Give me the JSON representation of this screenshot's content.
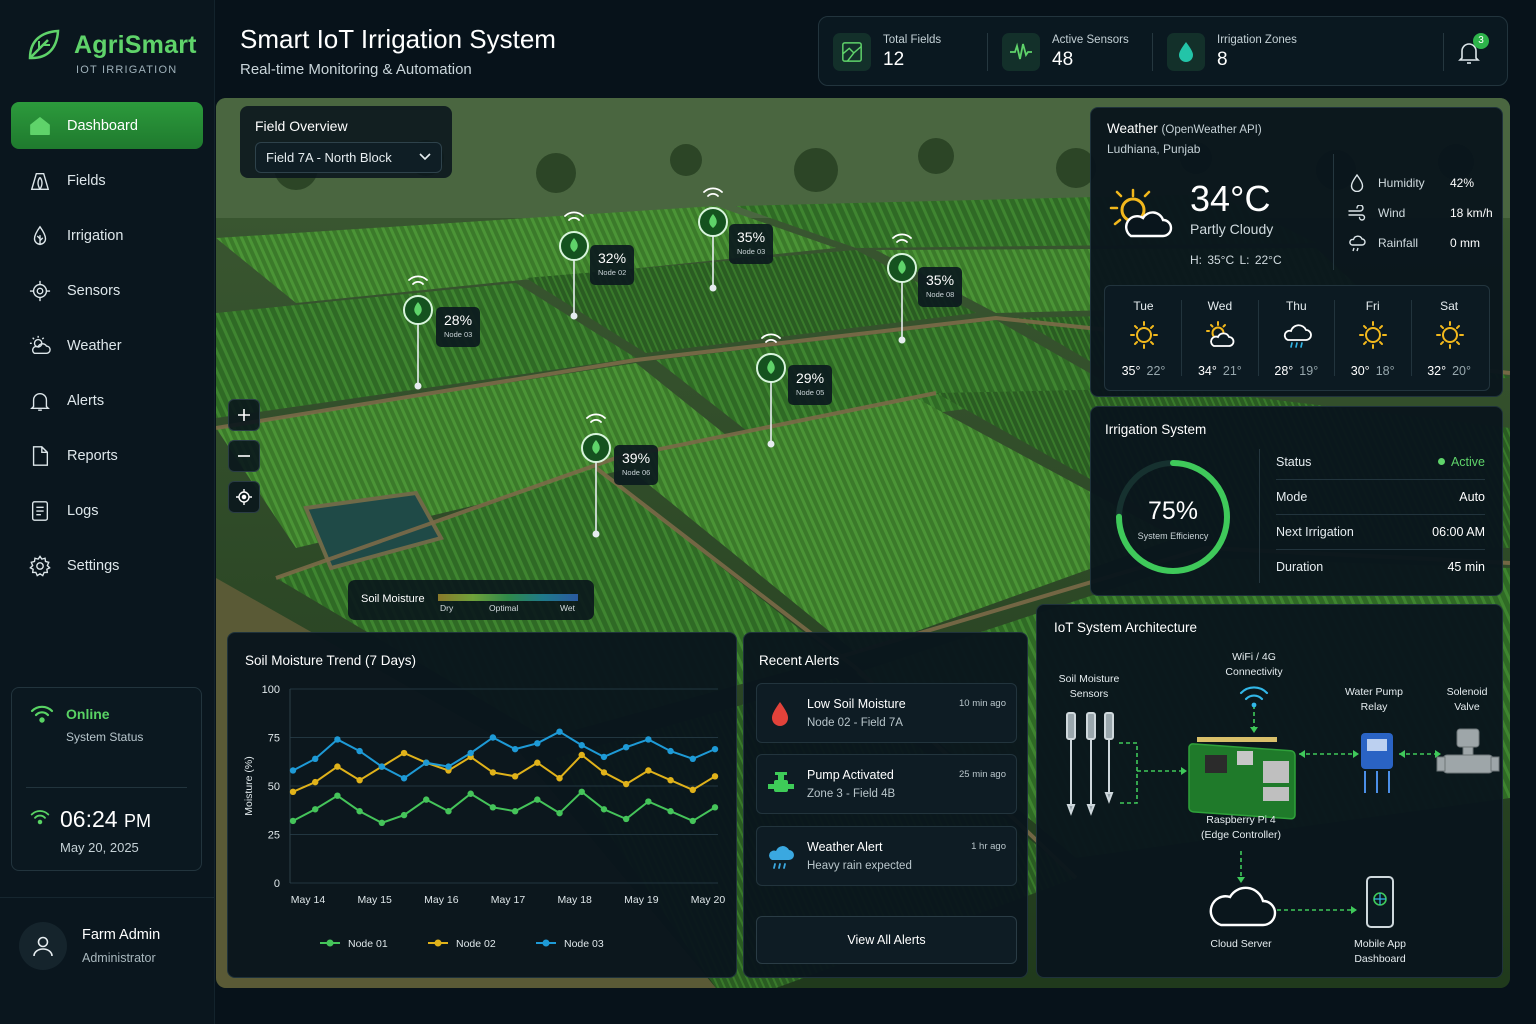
{
  "brand": {
    "name": "AgriSmart",
    "subtitle": "IOT IRRIGATION"
  },
  "nav": [
    {
      "label": "Dashboard",
      "icon": "home-icon",
      "active": true
    },
    {
      "label": "Fields",
      "icon": "field-icon"
    },
    {
      "label": "Irrigation",
      "icon": "irrigation-icon"
    },
    {
      "label": "Sensors",
      "icon": "sensor-icon"
    },
    {
      "label": "Weather",
      "icon": "weather-icon"
    },
    {
      "label": "Alerts",
      "icon": "bell-icon"
    },
    {
      "label": "Reports",
      "icon": "report-icon"
    },
    {
      "label": "Logs",
      "icon": "log-icon"
    },
    {
      "label": "Settings",
      "icon": "gear-icon"
    }
  ],
  "status": {
    "online": "Online",
    "label": "System Status",
    "time": "06:24",
    "ampm": "PM",
    "date": "May 20, 2025"
  },
  "user": {
    "name": "Farm Admin",
    "role": "Administrator"
  },
  "header": {
    "title": "Smart IoT Irrigation System",
    "subtitle": "Real-time Monitoring & Automation"
  },
  "stats": [
    {
      "label": "Total Fields",
      "value": "12"
    },
    {
      "label": "Active Sensors",
      "value": "48"
    },
    {
      "label": "Irrigation Zones",
      "value": "8"
    }
  ],
  "notifications": {
    "count": "3"
  },
  "field_overview": {
    "label": "Field Overview",
    "selected": "Field 7A - North Block"
  },
  "nodes": [
    {
      "pct": "32%",
      "name": "Node 02"
    },
    {
      "pct": "35%",
      "name": "Node 03"
    },
    {
      "pct": "35%",
      "name": "Node 08"
    },
    {
      "pct": "28%",
      "name": "Node 03"
    },
    {
      "pct": "29%",
      "name": "Node 05"
    },
    {
      "pct": "39%",
      "name": "Node 06"
    }
  ],
  "map_legend": {
    "title": "Soil Moisture",
    "dry": "Dry",
    "optimal": "Optimal",
    "wet": "Wet"
  },
  "weather": {
    "title": "Weather",
    "source": "(OpenWeather API)",
    "location": "Ludhiana, Punjab",
    "temp": "34°C",
    "condition": "Partly Cloudy",
    "hilo": "H: 35°C   L: 22°C",
    "humidity_label": "Humidity",
    "humidity": "42%",
    "wind_label": "Wind",
    "wind": "18 km/h",
    "rain_label": "Rainfall",
    "rain": "0 mm",
    "forecast": [
      {
        "day": "Tue",
        "hi": "35°",
        "lo": "22°",
        "icon": "sun-icon"
      },
      {
        "day": "Wed",
        "hi": "34°",
        "lo": "21°",
        "icon": "partly-cloudy-icon"
      },
      {
        "day": "Thu",
        "hi": "28°",
        "lo": "19°",
        "icon": "rain-cloud-icon"
      },
      {
        "day": "Fri",
        "hi": "30°",
        "lo": "18°",
        "icon": "sun-icon"
      },
      {
        "day": "Sat",
        "hi": "32°",
        "lo": "20°",
        "icon": "sun-icon"
      }
    ]
  },
  "irrigation": {
    "title": "Irrigation System",
    "efficiency": "75%",
    "efficiency_value": 75,
    "efficiency_label": "System Efficiency",
    "rows": [
      {
        "k": "Status",
        "v": "Active"
      },
      {
        "k": "Mode",
        "v": "Auto"
      },
      {
        "k": "Next Irrigation",
        "v": "06:00 AM"
      },
      {
        "k": "Duration",
        "v": "45 min"
      }
    ]
  },
  "trend": {
    "title": "Soil Moisture Trend (7 Days)"
  },
  "chart_data": {
    "type": "line",
    "ylabel": "Moisture (%)",
    "ylim": [
      0,
      100
    ],
    "yticks": [
      0,
      25,
      50,
      75,
      100
    ],
    "xticks": [
      "May 14",
      "May 15",
      "May 16",
      "May 17",
      "May 18",
      "May 19",
      "May 20"
    ],
    "grid": true,
    "legend": "bottom",
    "series": [
      {
        "name": "Node 01",
        "color": "#45c45a",
        "values": [
          32,
          38,
          45,
          37,
          31,
          35,
          43,
          37,
          46,
          39,
          37,
          43,
          36,
          47,
          38,
          33,
          42,
          37,
          32,
          39
        ]
      },
      {
        "name": "Node 02",
        "color": "#e0b21a",
        "values": [
          47,
          52,
          60,
          53,
          60,
          67,
          62,
          58,
          65,
          57,
          55,
          62,
          54,
          66,
          57,
          51,
          58,
          53,
          48,
          55
        ]
      },
      {
        "name": "Node 03",
        "color": "#1e9ad6",
        "values": [
          58,
          64,
          74,
          68,
          60,
          54,
          62,
          60,
          67,
          75,
          69,
          72,
          78,
          71,
          65,
          70,
          74,
          68,
          64,
          69
        ]
      }
    ]
  },
  "alerts": {
    "title": "Recent Alerts",
    "items": [
      {
        "title": "Low Soil Moisture",
        "sub": "Node 02 - Field 7A",
        "time": "10 min ago",
        "icon": "water-drop-icon"
      },
      {
        "title": "Pump Activated",
        "sub": "Zone 3 - Field 4B",
        "time": "25 min ago",
        "icon": "pump-icon"
      },
      {
        "title": "Weather Alert",
        "sub": "Heavy rain expected",
        "time": "1 hr ago",
        "icon": "rain-cloud-icon"
      }
    ],
    "view_all": "View All Alerts"
  },
  "architecture": {
    "title": "IoT System Architecture",
    "sensors": "Soil Moisture\nSensors",
    "wifi": "WiFi / 4G\nConnectivity",
    "pump": "Water Pump\nRelay",
    "valve": "Solenoid\nValve",
    "pi": "Raspberry Pi 4\n(Edge Controller)",
    "cloud": "Cloud Server",
    "mobile": "Mobile App\nDashboard"
  },
  "colors": {
    "accent": "#5fd36a",
    "panel": "#09151c",
    "bg": "#07121a"
  }
}
